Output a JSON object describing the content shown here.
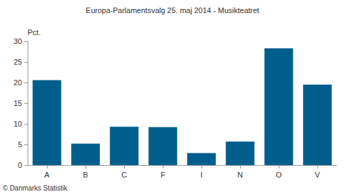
{
  "chart_data": {
    "type": "bar",
    "title": "Europa-Parlamentsvalg 25. maj 2014 - Musikteatret",
    "y_label": "Pct.",
    "categories": [
      "A",
      "B",
      "C",
      "F",
      "I",
      "N",
      "O",
      "V"
    ],
    "values": [
      20.6,
      5.2,
      9.3,
      9.2,
      2.9,
      5.7,
      28.3,
      19.5
    ],
    "color": "#005e8c",
    "ylim": [
      0,
      30
    ],
    "yticks": [
      0,
      5,
      10,
      15,
      20,
      25,
      30
    ],
    "grid": false,
    "annotations": [
      "© Danmarks Statistik"
    ]
  }
}
